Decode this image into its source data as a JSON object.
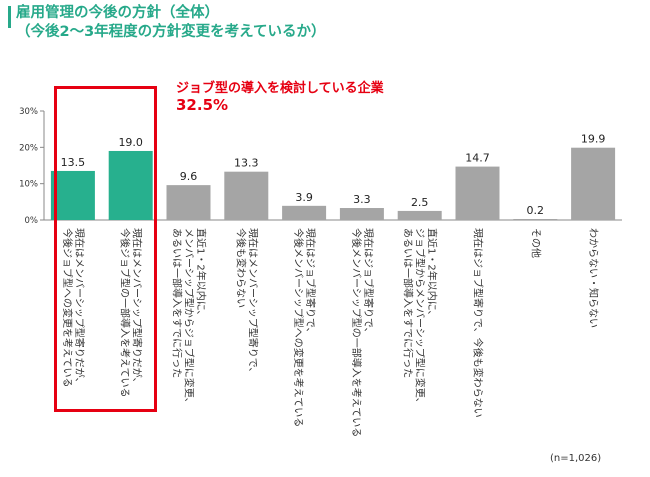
{
  "title": {
    "line1": "雇用管理の今後の方針（全体）",
    "line2": "（今後2～3年程度の方針変更を考えているか）"
  },
  "callout": {
    "text": "ジョブ型の導入を検討している企業",
    "value": "32.5%"
  },
  "note": "(n=1,026)",
  "colors": {
    "highlight": "#27b08e",
    "other": "#a5a5a5",
    "accent_red": "#e60012",
    "title": "#27a98a"
  },
  "chart_data": {
    "type": "bar",
    "ylim": [
      0,
      30
    ],
    "yticks": [
      "0%",
      "10%",
      "20%",
      "30%"
    ],
    "grid": false,
    "categories": [
      [
        "現在はメンバーシップ型寄りだが、",
        "今後ジョブ型への変更を考えている"
      ],
      [
        "現在はメンバーシップ型寄りだが、",
        "今後ジョブ型の一部導入を考えている"
      ],
      [
        "直近1・2年以内に、",
        "メンバーシップ型からジョブ型に変更、",
        "あるいは一部導入をすでに行った"
      ],
      [
        "現在はメンバーシップ型寄りで、",
        "今後も変わらない"
      ],
      [
        "現在はジョブ型寄りで、",
        "今後メンバーシップ型への変更を考えている"
      ],
      [
        "現在はジョブ型寄りで、",
        "今後メンバーシップ型の一部導入を考えている"
      ],
      [
        "直近1・2年以内に、",
        "ジョブ型からメンバーシップ型に変更、",
        "あるいは一部導入をすでに行った"
      ],
      [
        "現在はジョブ型寄りで、今後も変わらない"
      ],
      [
        "その他"
      ],
      [
        "わからない・知らない"
      ]
    ],
    "values": [
      13.5,
      19.0,
      9.6,
      13.3,
      3.9,
      3.3,
      2.5,
      14.7,
      0.2,
      19.9
    ],
    "value_labels": [
      "13.5",
      "19.0",
      "9.6",
      "13.3",
      "3.9",
      "3.3",
      "2.5",
      "14.7",
      "0.2",
      "19.9"
    ],
    "highlighted": [
      true,
      true,
      false,
      false,
      false,
      false,
      false,
      false,
      false,
      false
    ]
  }
}
